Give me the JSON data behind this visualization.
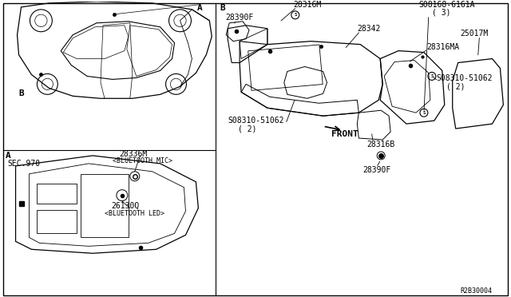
{
  "background_color": "#ffffff",
  "border_color": "#000000",
  "diagram_id": "R2B30004",
  "parts": {
    "section_A_label": "A",
    "section_B_label": "B",
    "sec970": "SEC.970",
    "part_28336M": "28336M",
    "part_28336M_sub": "<BLUETOOTH MIC>",
    "part_26130Q": "26130Q",
    "part_26130Q_sub": "<BLUETOOTH LED>",
    "part_28316M": "28316M",
    "part_28390F_top": "28390F",
    "part_08168_6161A": "S08168-6161A",
    "part_08168_6161A_sub": "( 3)",
    "part_28342": "28342",
    "part_08310_51062_left": "S08310-51062",
    "part_08310_51062_left_sub": "( 2)",
    "part_28316MA": "28316MA",
    "part_08310_51062_right": "S08310-51062",
    "part_08310_51062_right_sub": "( 2)",
    "part_25017M": "25017M",
    "part_28316B": "28316B",
    "part_28390F_bottom": "28390F",
    "front_label": "FRONT"
  },
  "font_size_label": 7,
  "font_size_id": 6,
  "line_color": "#000000",
  "text_color": "#000000"
}
